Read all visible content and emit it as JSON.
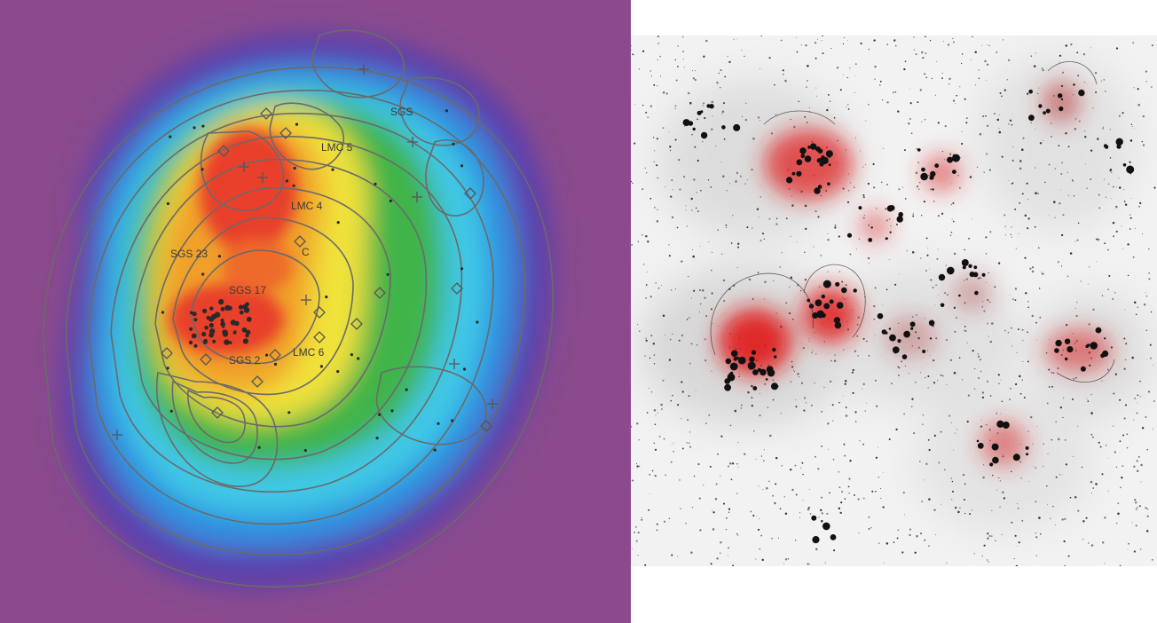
{
  "colors": {
    "background_outer": "#8a4a8c",
    "purple": "#5a3fae",
    "blue": "#2f8fe0",
    "cyan": "#3fc8e6",
    "green": "#3fb44a",
    "yellow": "#f0e23a",
    "orange": "#f0a02a",
    "red": "#e8402a",
    "contour_line": "#6a6a6a",
    "bw_paper": "#f2f2f2",
    "h_alpha_red": "#e02020"
  },
  "left_panel": {
    "labels": {
      "lmc5": "LMC 5",
      "lmc4": "LMC 4",
      "sgs23": "SGS 23",
      "sgs17": "SGS 17",
      "lmc6": "LMC 6",
      "sgs2": "SGS 2",
      "sgs_top": "SGS",
      "c": "C"
    }
  },
  "right_panel": {}
}
